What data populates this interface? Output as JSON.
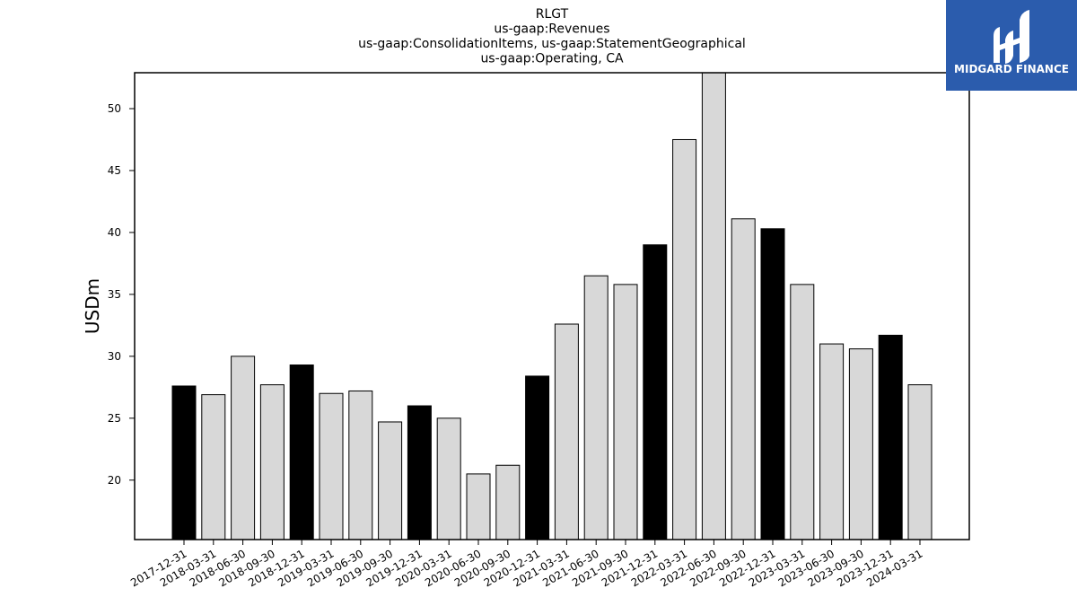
{
  "chart_data": {
    "type": "bar",
    "title_lines": [
      "RLGT",
      "us-gaap:Revenues",
      "us-gaap:ConsolidationItems, us-gaap:StatementGeographical",
      "us-gaap:Operating, CA"
    ],
    "ylabel": "USDm",
    "xlabel": "",
    "ylim": [
      15.2,
      52.9
    ],
    "yticks": [
      20,
      25,
      30,
      35,
      40,
      45,
      50
    ],
    "categories": [
      "2017-12-31",
      "2018-03-31",
      "2018-06-30",
      "2018-09-30",
      "2018-12-31",
      "2019-03-31",
      "2019-06-30",
      "2019-09-30",
      "2019-12-31",
      "2020-03-31",
      "2020-06-30",
      "2020-09-30",
      "2020-12-31",
      "2021-03-31",
      "2021-06-30",
      "2021-09-30",
      "2021-12-31",
      "2022-03-31",
      "2022-06-30",
      "2022-09-30",
      "2022-12-31",
      "2023-03-31",
      "2023-06-30",
      "2023-09-30",
      "2023-12-31",
      "2024-03-31"
    ],
    "values": [
      27.6,
      26.9,
      30.0,
      27.7,
      29.3,
      27.0,
      27.2,
      24.7,
      26.0,
      25.0,
      20.5,
      21.2,
      28.4,
      32.6,
      36.5,
      35.8,
      39.0,
      47.5,
      53.0,
      41.1,
      40.3,
      35.8,
      31.0,
      30.6,
      31.7,
      27.7
    ],
    "highlight_color": "#000000",
    "bar_color": "#d8d8d8",
    "grid": false,
    "legend": "none"
  },
  "logo": {
    "text": "MIDGARD FINANCE",
    "color": "#2b5cad"
  }
}
